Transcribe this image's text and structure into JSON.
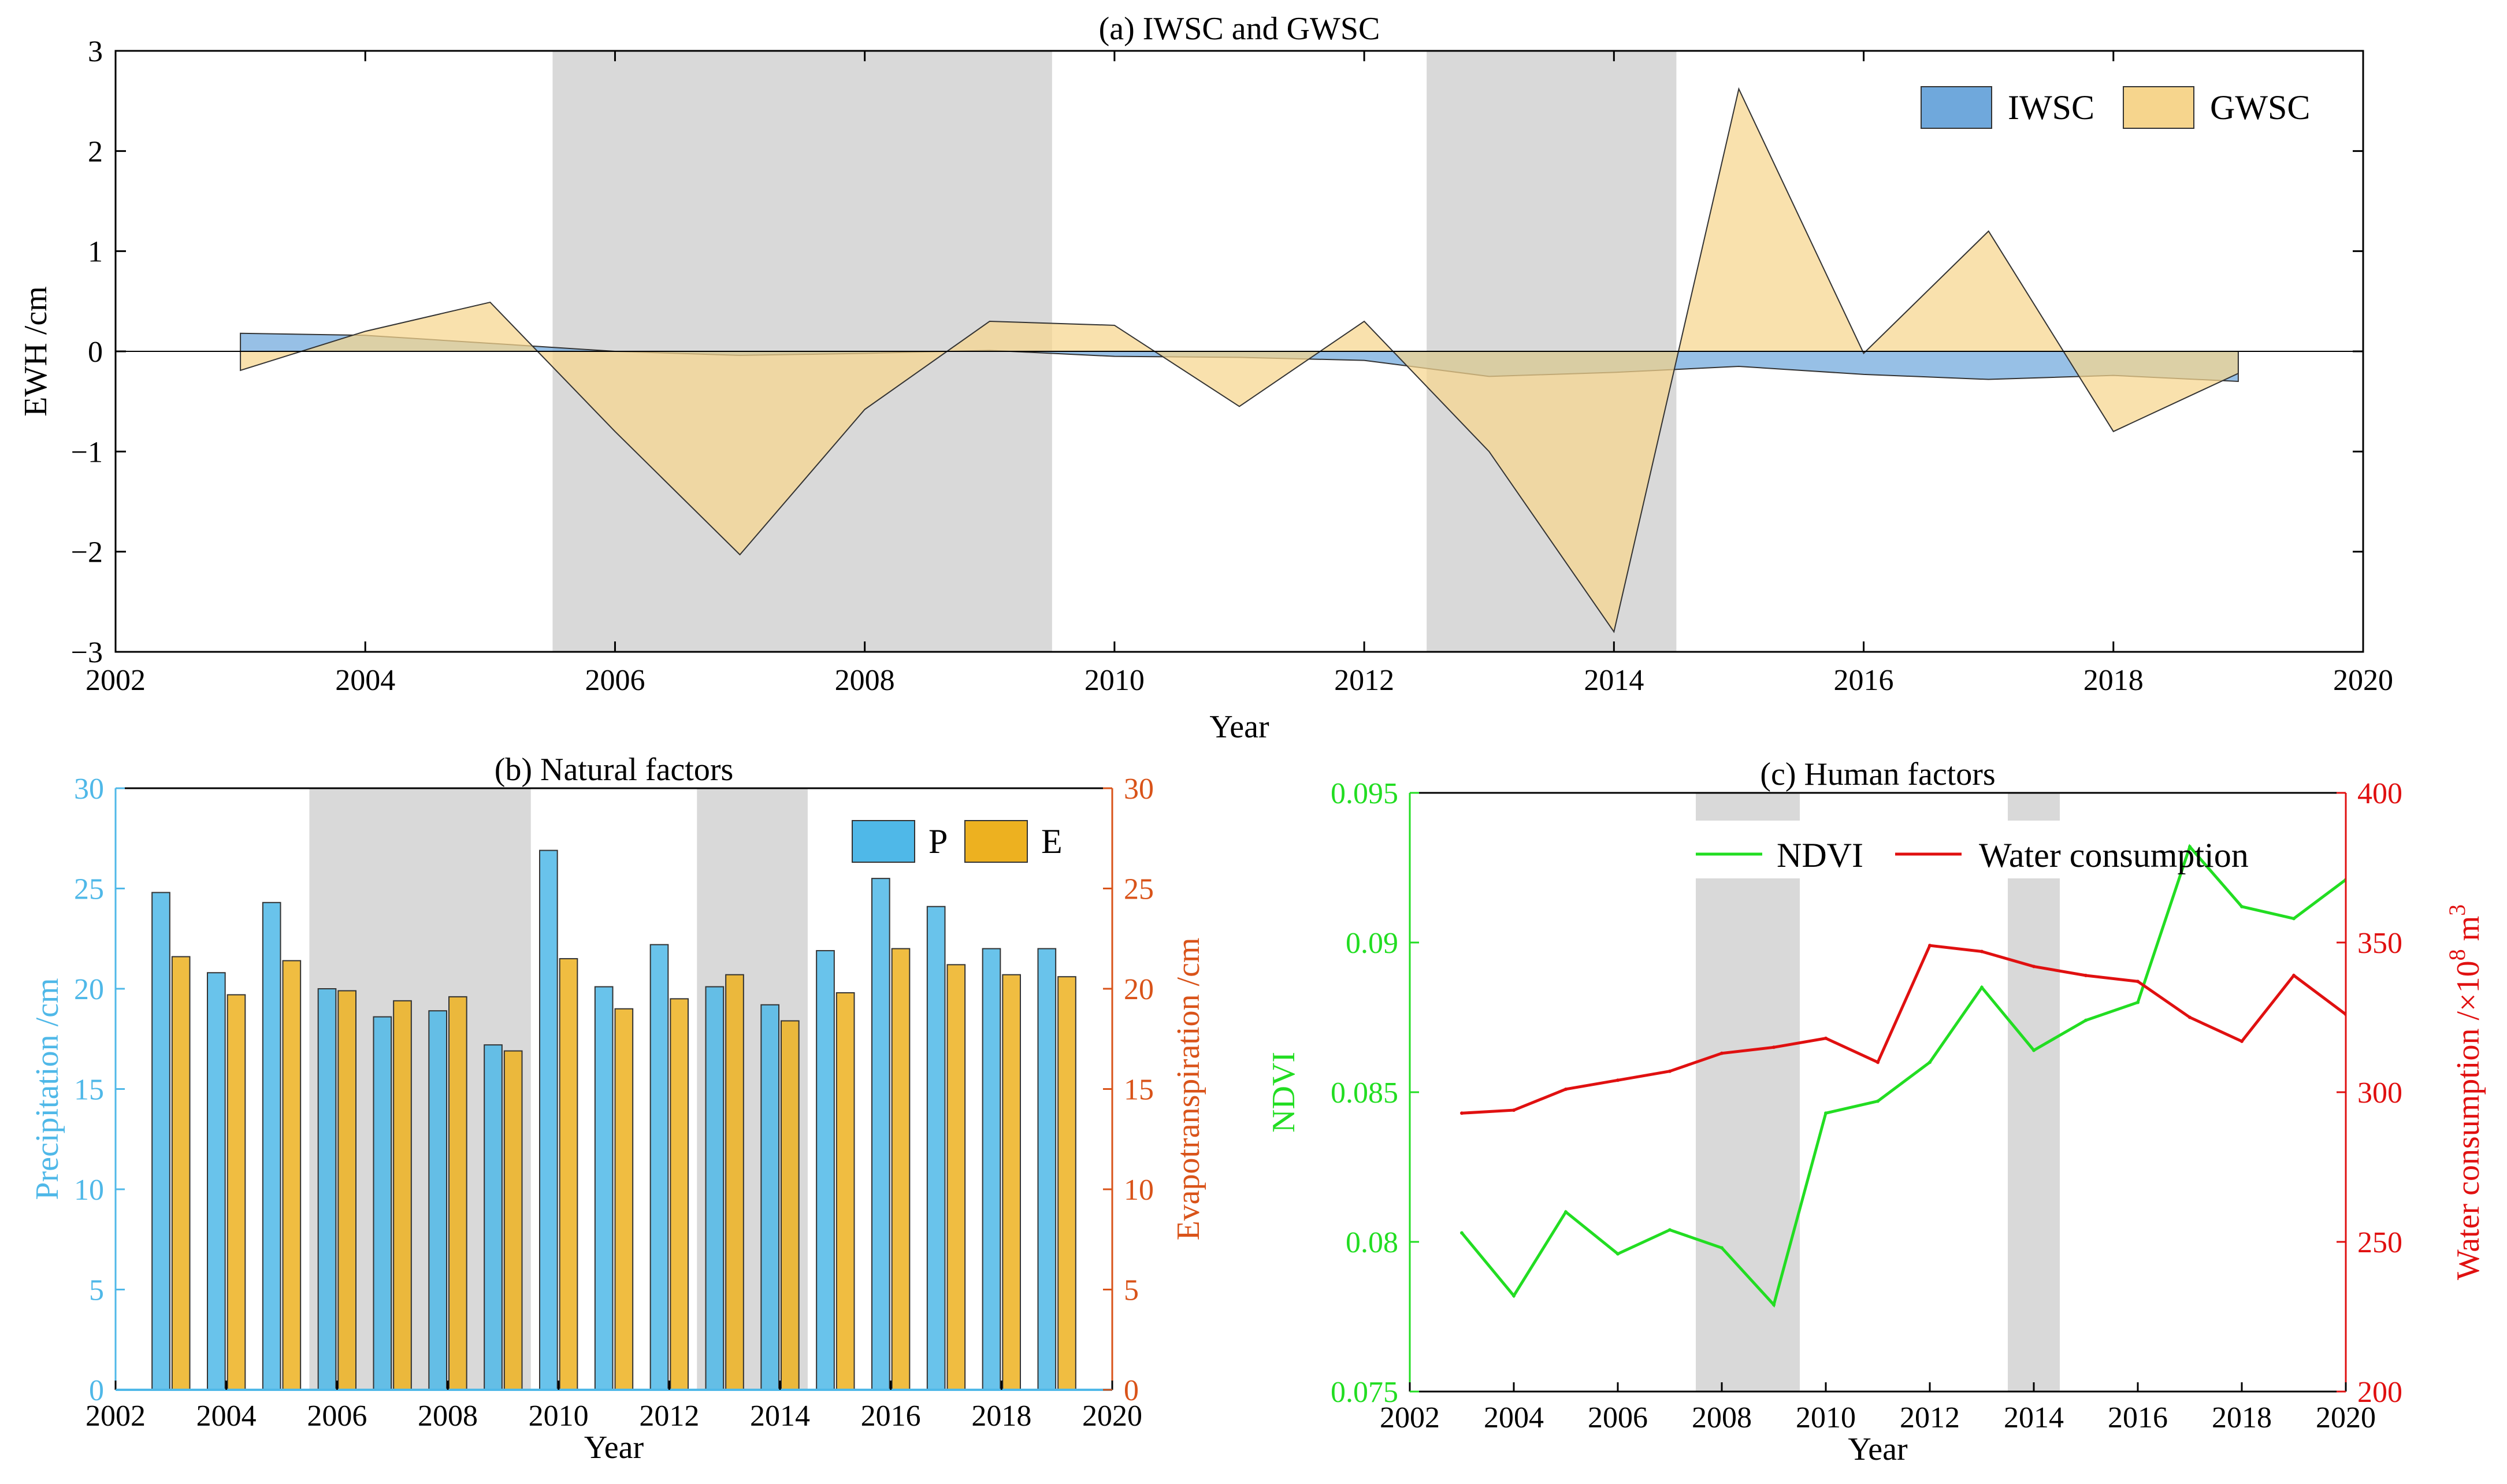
{
  "chart_data": [
    {
      "type": "area",
      "title": "(a) IWSC and GWSC",
      "xlabel": "Year",
      "ylabel": "EWH /cm",
      "xlim": [
        2002,
        2020
      ],
      "ylim": [
        -3,
        3
      ],
      "xticks": [
        2002,
        2004,
        2006,
        2008,
        2010,
        2012,
        2014,
        2016,
        2018,
        2020
      ],
      "yticks": [
        -3,
        -2,
        -1,
        0,
        1,
        2,
        3
      ],
      "ytick_labels": [
        "−3",
        "−2",
        "−1",
        "0",
        "1",
        "2",
        "3"
      ],
      "legend_position": "top-right",
      "shaded_periods": [
        [
          2005.5,
          2009.5
        ],
        [
          2012.5,
          2014.5
        ]
      ],
      "x": [
        2003,
        2004,
        2005,
        2006,
        2007,
        2008,
        2009,
        2010,
        2011,
        2012,
        2013,
        2014,
        2015,
        2016,
        2017,
        2018,
        2019
      ],
      "series": [
        {
          "name": "IWSC",
          "color": "#6fa8dc",
          "values": [
            0.18,
            0.16,
            0.08,
            0.0,
            -0.04,
            -0.02,
            0.01,
            -0.05,
            -0.06,
            -0.09,
            -0.25,
            -0.21,
            -0.15,
            -0.23,
            -0.28,
            -0.24,
            -0.3
          ]
        },
        {
          "name": "GWSC",
          "color": "#f6d58d",
          "values": [
            -0.19,
            0.2,
            0.49,
            -0.8,
            -2.03,
            -0.58,
            0.3,
            0.26,
            -0.55,
            0.3,
            -1.0,
            -2.8,
            2.62,
            -0.02,
            1.2,
            -0.8,
            -0.22
          ]
        }
      ]
    },
    {
      "type": "bar",
      "title": "(b) Natural factors",
      "xlabel": "Year",
      "ylabel": "Precipitation /cm",
      "y2label": "Evapotranspiration /cm",
      "xlim": [
        2002,
        2020
      ],
      "ylim": [
        0,
        30
      ],
      "y2lim": [
        0,
        30
      ],
      "xticks": [
        2002,
        2004,
        2006,
        2008,
        2010,
        2012,
        2014,
        2016,
        2018,
        2020
      ],
      "yticks": [
        0,
        5,
        10,
        15,
        20,
        25,
        30
      ],
      "y2ticks": [
        0,
        5,
        10,
        15,
        20,
        25,
        30
      ],
      "legend_position": "top-right",
      "shaded_periods": [
        [
          2005.5,
          2009.5
        ],
        [
          2012.5,
          2014.5
        ]
      ],
      "x": [
        2003,
        2004,
        2005,
        2006,
        2007,
        2008,
        2009,
        2010,
        2011,
        2012,
        2013,
        2014,
        2015,
        2016,
        2017,
        2018,
        2019
      ],
      "series": [
        {
          "name": "P",
          "color": "#4fb8e8",
          "values": [
            24.8,
            20.8,
            24.3,
            20.0,
            18.6,
            18.9,
            17.2,
            26.9,
            20.1,
            22.2,
            20.1,
            19.2,
            21.9,
            25.5,
            24.1,
            22.0,
            22.0
          ]
        },
        {
          "name": "E",
          "color": "#edb120",
          "values": [
            21.6,
            19.7,
            21.4,
            19.9,
            19.4,
            19.6,
            16.9,
            21.5,
            19.0,
            19.5,
            20.7,
            18.4,
            19.8,
            22.0,
            21.2,
            20.7,
            20.6
          ]
        }
      ],
      "colors": {
        "left_axis": "#4fb8e8",
        "right_axis": "#d95319"
      }
    },
    {
      "type": "line",
      "title": "(c) Human factors",
      "xlabel": "Year",
      "ylabel": "NDVI",
      "y2label_main": "Water consumption /×10",
      "y2label_exp": "8",
      "y2label_unit": " m",
      "y2label_exp2": "3",
      "xlim": [
        2002,
        2020
      ],
      "ylim": [
        0.075,
        0.095
      ],
      "y2lim": [
        200,
        400
      ],
      "xticks": [
        2002,
        2004,
        2006,
        2008,
        2010,
        2012,
        2014,
        2016,
        2018,
        2020
      ],
      "yticks": [
        0.075,
        0.08,
        0.085,
        0.09,
        0.095
      ],
      "ytick_labels": [
        "0.075",
        "0.08",
        "0.085",
        "0.09",
        "0.095"
      ],
      "y2ticks": [
        200,
        250,
        300,
        350,
        400
      ],
      "legend_position": "top",
      "shaded_periods": [
        [
          2007.5,
          2009.5
        ],
        [
          2013.5,
          2014.5
        ]
      ],
      "x": [
        2003,
        2004,
        2005,
        2006,
        2007,
        2008,
        2009,
        2010,
        2011,
        2012,
        2013,
        2014,
        2015,
        2016,
        2017,
        2018,
        2019,
        2020
      ],
      "series": [
        {
          "name": "NDVI",
          "color": "#22dd22",
          "axis": "left",
          "values": [
            0.0803,
            0.0782,
            0.081,
            0.0796,
            0.0804,
            0.0798,
            0.0779,
            0.0843,
            0.0847,
            0.086,
            0.0885,
            0.0864,
            0.0874,
            0.088,
            0.0932,
            0.0912,
            0.0908,
            0.0921
          ]
        },
        {
          "name": "Water consumption",
          "color": "#e01010",
          "axis": "right",
          "values": [
            293,
            294,
            301,
            304,
            307,
            313,
            315,
            318,
            310,
            349,
            347,
            342,
            339,
            337,
            325,
            317,
            339,
            326
          ]
        }
      ]
    }
  ]
}
